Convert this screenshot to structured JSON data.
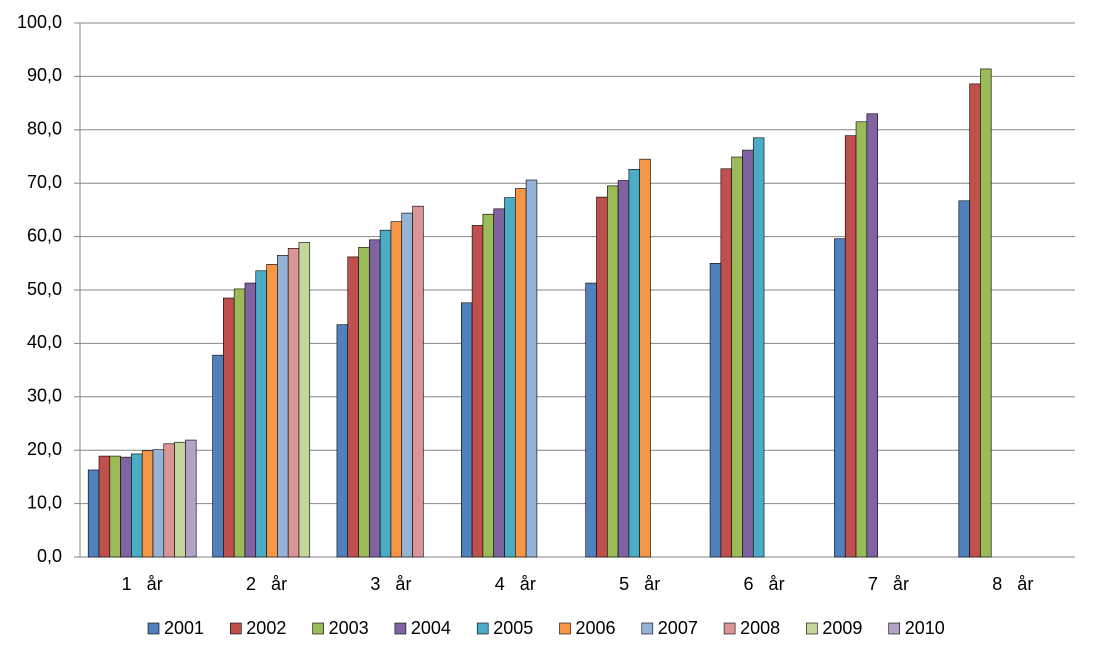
{
  "chart_data": {
    "type": "bar",
    "categories": [
      "1   år",
      "2   år",
      "3   år",
      "4   år",
      "5   år",
      "6   år",
      "7   år",
      "8   år"
    ],
    "series": [
      {
        "name": "2001",
        "color": "#4f81bd",
        "values": [
          16.3,
          37.8,
          43.5,
          47.6,
          51.3,
          55.0,
          59.6,
          66.7
        ]
      },
      {
        "name": "2002",
        "color": "#c0504d",
        "values": [
          18.9,
          48.5,
          56.2,
          62.1,
          67.4,
          72.7,
          78.9,
          88.6
        ]
      },
      {
        "name": "2003",
        "color": "#9bbb59",
        "values": [
          18.9,
          50.2,
          58.0,
          64.2,
          69.5,
          74.9,
          81.5,
          91.4
        ]
      },
      {
        "name": "2004",
        "color": "#8064a2",
        "values": [
          18.7,
          51.3,
          59.4,
          65.2,
          70.5,
          76.2,
          83.0,
          null
        ]
      },
      {
        "name": "2005",
        "color": "#4bacc6",
        "values": [
          19.3,
          53.6,
          61.2,
          67.3,
          72.6,
          78.5,
          null,
          null
        ]
      },
      {
        "name": "2006",
        "color": "#f79646",
        "values": [
          19.9,
          54.8,
          62.8,
          69.0,
          74.5,
          null,
          null,
          null
        ]
      },
      {
        "name": "2007",
        "color": "#95b3d7",
        "values": [
          20.1,
          56.5,
          64.4,
          70.6,
          null,
          null,
          null,
          null
        ]
      },
      {
        "name": "2008",
        "color": "#d99694",
        "values": [
          21.2,
          57.8,
          65.7,
          null,
          null,
          null,
          null,
          null
        ]
      },
      {
        "name": "2009",
        "color": "#c3d69b",
        "values": [
          21.5,
          58.9,
          null,
          null,
          null,
          null,
          null,
          null
        ]
      },
      {
        "name": "2010",
        "color": "#b2a2c7",
        "values": [
          21.9,
          null,
          null,
          null,
          null,
          null,
          null,
          null
        ]
      }
    ],
    "ylim": [
      0,
      100
    ],
    "yticks": [
      {
        "value": 0,
        "label": "0,0"
      },
      {
        "value": 10,
        "label": "10,0"
      },
      {
        "value": 20,
        "label": "20,0"
      },
      {
        "value": 30,
        "label": "30,0"
      },
      {
        "value": 40,
        "label": "40,0"
      },
      {
        "value": 50,
        "label": "50,0"
      },
      {
        "value": 60,
        "label": "60,0"
      },
      {
        "value": 70,
        "label": "70,0"
      },
      {
        "value": 80,
        "label": "80,0"
      },
      {
        "value": 90,
        "label": "90,0"
      },
      {
        "value": 100,
        "label": "100,0"
      }
    ],
    "grid": true,
    "legend": "bottom"
  }
}
